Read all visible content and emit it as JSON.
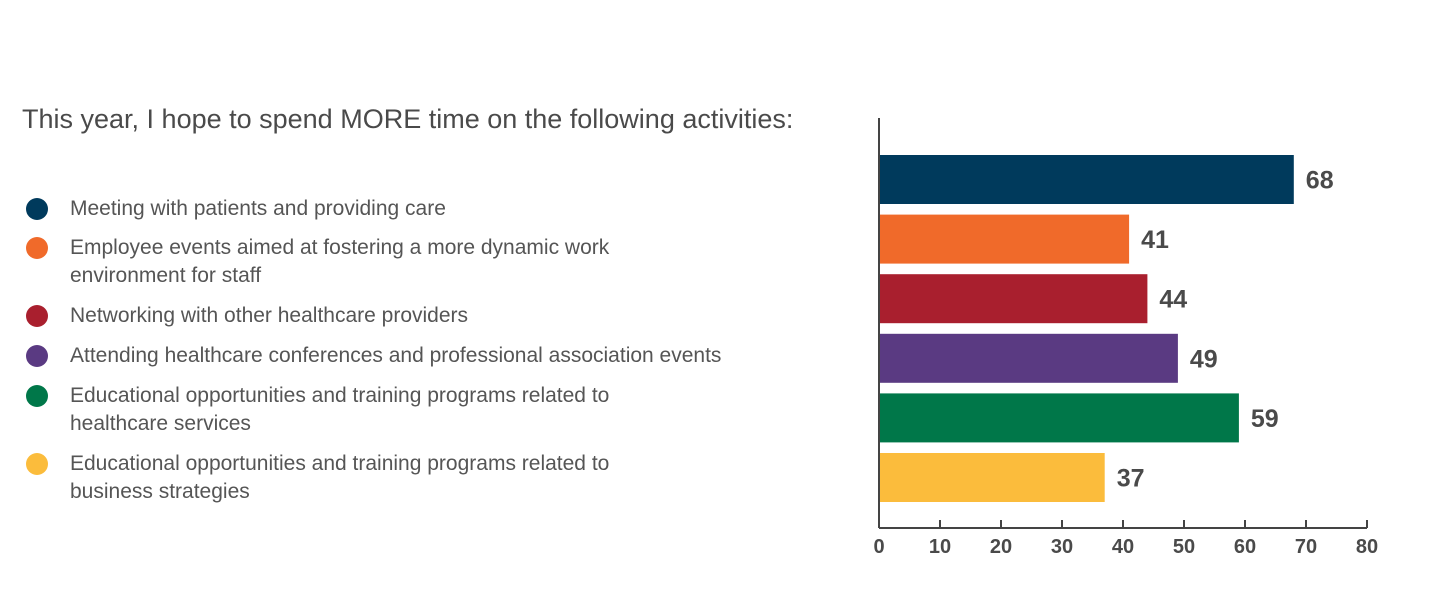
{
  "chart_data": {
    "type": "bar",
    "orientation": "horizontal",
    "title": "This year, I hope to spend MORE time on the following activities:",
    "categories": [
      "Meeting with patients and providing care",
      "Employee events aimed at fostering a more dynamic work environment for staff",
      "Networking with other healthcare providers",
      "Attending healthcare conferences and professional association events",
      "Educational opportunities and training programs related to healthcare services",
      "Educational opportunities and training programs related to business strategies"
    ],
    "values": [
      68,
      41,
      44,
      49,
      59,
      37
    ],
    "colors": [
      "#003a5c",
      "#f06a2a",
      "#a91f2e",
      "#5a3a82",
      "#007749",
      "#fbbc3c"
    ],
    "xlim": [
      0,
      80
    ],
    "xticks": [
      "0",
      "10",
      "20",
      "30",
      "40",
      "50",
      "60",
      "70",
      "80"
    ],
    "xlabel": "",
    "ylabel": "",
    "grid": false,
    "legend_position": "left"
  }
}
